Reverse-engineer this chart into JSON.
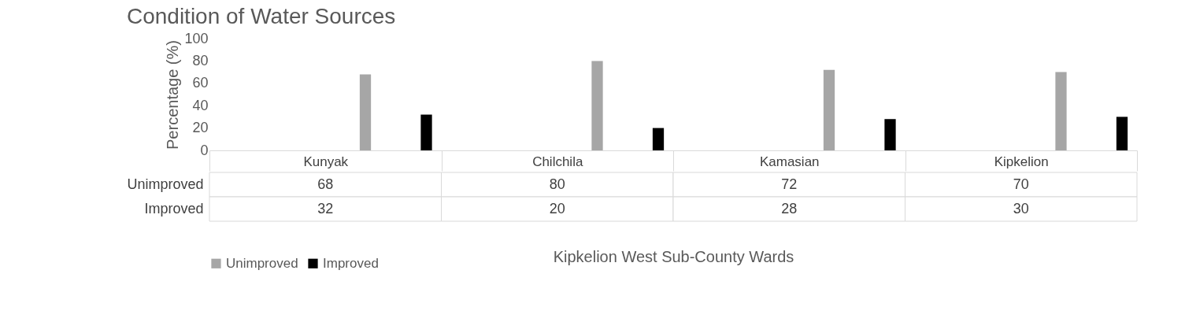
{
  "chart_data": {
    "type": "bar",
    "title": "Condition of Water Sources",
    "xlabel": "Kipkelion West Sub-County Wards",
    "ylabel": "Percentage (%)",
    "categories": [
      "Kunyak",
      "Chilchila",
      "Kamasian",
      "Kipkelion"
    ],
    "series": [
      {
        "name": "Unimproved",
        "color": "#a6a6a6",
        "values": [
          68,
          80,
          72,
          70
        ]
      },
      {
        "name": "Improved",
        "color": "#000000",
        "values": [
          32,
          20,
          28,
          30
        ]
      }
    ],
    "ylim": [
      0,
      100
    ],
    "yticks": [
      0,
      20,
      40,
      60,
      80,
      100
    ],
    "data_labels": true,
    "legend": "bottom"
  }
}
